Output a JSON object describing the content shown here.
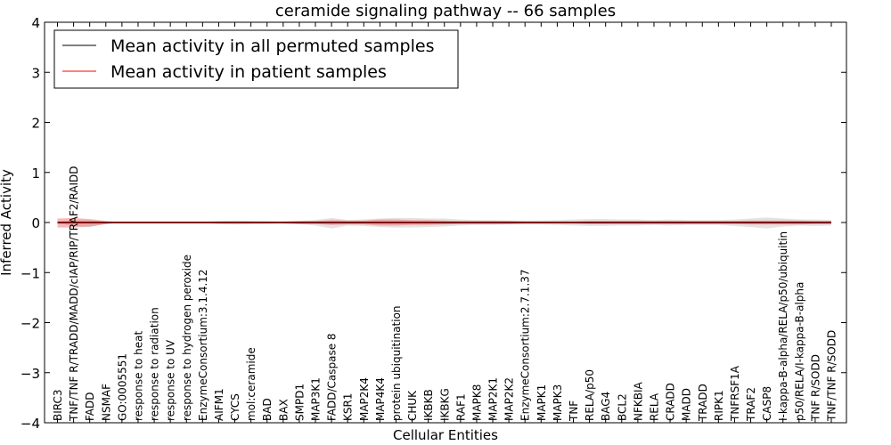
{
  "chart_data": {
    "type": "line",
    "title": "ceramide signaling pathway -- 66 samples",
    "xlabel": "Cellular Entities",
    "ylabel": "Inferred Activity",
    "ylim": [
      -4,
      4
    ],
    "yticks": [
      -4,
      -3,
      -2,
      -1,
      0,
      1,
      2,
      3,
      4
    ],
    "legend_position": "top-left",
    "categories": [
      "BIRC3",
      "TNF/TNF R/TRADD/MADD/cIAP/RIP/TRAF2/RAIDD",
      "FADD",
      "NSMAF",
      "GO:0005551",
      "response to heat",
      "response to radiation",
      "response to UV",
      "response to hydrogen peroxide",
      "EnzymeConsortium:3.1.4.12",
      "AIFM1",
      "CYCS",
      "mol:ceramide",
      "BAD",
      "BAX",
      "SMPD1",
      "MAP3K1",
      "FADD/Caspase 8",
      "KSR1",
      "MAP2K4",
      "MAP4K4",
      "protein ubiquitination",
      "CHUK",
      "IKBKB",
      "IKBKG",
      "RAF1",
      "MAPK8",
      "MAP2K1",
      "MAP2K2",
      "EnzymeConsortium:2.7.1.37",
      "MAPK1",
      "MAPK3",
      "TNF",
      "RELA/p50",
      "BAG4",
      "BCL2",
      "NFKBIA",
      "RELA",
      "CRADD",
      "MADD",
      "TRADD",
      "RIPK1",
      "TNFRSF1A",
      "TRAF2",
      "CASP8",
      "I-kappa-B-alpha/RELA/p50/ubiquitin",
      "p50/RELA/I-kappa-B-alpha",
      "TNF R/SODD",
      "TNF/TNF R/SODD"
    ],
    "series": [
      {
        "name": "Mean activity in all permuted samples",
        "color": "#000000",
        "values": [
          0,
          0,
          0,
          0,
          0,
          0,
          0,
          0,
          0,
          0,
          0,
          0,
          0,
          0,
          0,
          0,
          0,
          0,
          0,
          0,
          0,
          0,
          0,
          0,
          0,
          0,
          0,
          0,
          0,
          0,
          0,
          0,
          0,
          0,
          0,
          0,
          0,
          0,
          0,
          0,
          0,
          0,
          0,
          0,
          0,
          0,
          0,
          0,
          0
        ],
        "band_upper": [
          0.02,
          0.05,
          0.05,
          0.02,
          0.0,
          0.0,
          0.0,
          0.0,
          0.0,
          0.01,
          0.03,
          0.04,
          0.03,
          0.03,
          0.02,
          0.03,
          0.05,
          0.09,
          0.05,
          0.06,
          0.08,
          0.09,
          0.09,
          0.08,
          0.08,
          0.06,
          0.05,
          0.05,
          0.04,
          0.04,
          0.04,
          0.05,
          0.06,
          0.07,
          0.07,
          0.06,
          0.06,
          0.05,
          0.06,
          0.05,
          0.05,
          0.05,
          0.06,
          0.08,
          0.1,
          0.08,
          0.06,
          0.06,
          0.05
        ],
        "band_lower": [
          -0.02,
          -0.07,
          -0.09,
          -0.03,
          0.0,
          0.0,
          0.0,
          0.0,
          0.0,
          -0.01,
          -0.03,
          -0.04,
          -0.03,
          -0.03,
          -0.02,
          -0.03,
          -0.06,
          -0.12,
          -0.06,
          -0.07,
          -0.09,
          -0.1,
          -0.1,
          -0.09,
          -0.08,
          -0.06,
          -0.05,
          -0.05,
          -0.04,
          -0.04,
          -0.04,
          -0.05,
          -0.06,
          -0.07,
          -0.07,
          -0.06,
          -0.06,
          -0.05,
          -0.06,
          -0.05,
          -0.05,
          -0.05,
          -0.07,
          -0.09,
          -0.12,
          -0.08,
          -0.06,
          -0.07,
          -0.06
        ]
      },
      {
        "name": "Mean activity in patient samples",
        "color": "#ff0000",
        "values": [
          0.0,
          0.0,
          0.0,
          0.0,
          0.0,
          0.0,
          0.0,
          0.0,
          0.0,
          0.0,
          0.0,
          0.0,
          0.0,
          0.0,
          0.0,
          0.0,
          0.0,
          0.0,
          0.0,
          0.0,
          0.0,
          0.0,
          0.0,
          0.0,
          0.0,
          0.0,
          0.0,
          0.0,
          0.0,
          0.0,
          0.0,
          0.0,
          0.0,
          0.0,
          0.0,
          0.0,
          0.0,
          0.0,
          0.0,
          0.0,
          0.0,
          0.0,
          0.0,
          0.0,
          0.0,
          0.0,
          0.0,
          0.0,
          0.0
        ],
        "band_upper": [
          0.08,
          0.09,
          0.07,
          0.03,
          0.0,
          0.0,
          0.0,
          0.0,
          0.0,
          0.01,
          0.02,
          0.02,
          0.02,
          0.01,
          0.02,
          0.03,
          0.03,
          0.05,
          0.04,
          0.04,
          0.06,
          0.06,
          0.05,
          0.05,
          0.04,
          0.03,
          0.03,
          0.03,
          0.03,
          0.02,
          0.02,
          0.02,
          0.02,
          0.03,
          0.03,
          0.03,
          0.03,
          0.03,
          0.03,
          0.03,
          0.03,
          0.03,
          0.03,
          0.04,
          0.04,
          0.04,
          0.04,
          0.03,
          0.03
        ],
        "band_lower": [
          -0.1,
          -0.1,
          -0.08,
          -0.03,
          0.0,
          0.0,
          0.0,
          0.0,
          0.0,
          -0.01,
          -0.02,
          -0.02,
          -0.02,
          -0.01,
          -0.02,
          -0.03,
          -0.03,
          -0.05,
          -0.04,
          -0.04,
          -0.06,
          -0.06,
          -0.05,
          -0.05,
          -0.04,
          -0.03,
          -0.03,
          -0.03,
          -0.03,
          -0.02,
          -0.02,
          -0.02,
          -0.02,
          -0.03,
          -0.03,
          -0.03,
          -0.03,
          -0.03,
          -0.03,
          -0.03,
          -0.03,
          -0.03,
          -0.03,
          -0.04,
          -0.04,
          -0.04,
          -0.04,
          -0.03,
          -0.03
        ]
      }
    ]
  }
}
